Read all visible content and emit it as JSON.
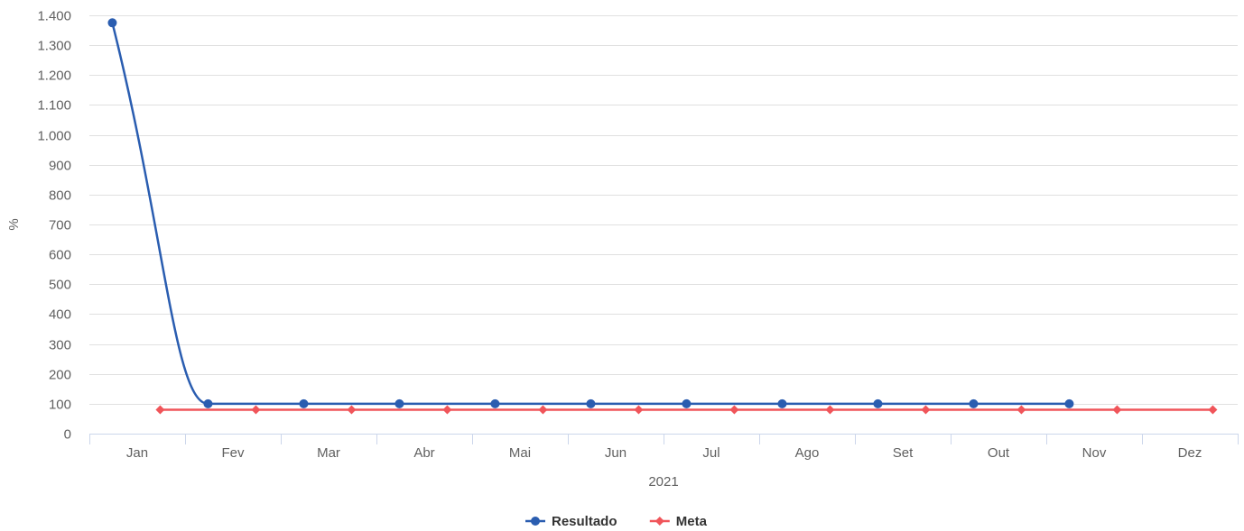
{
  "chart_data": {
    "type": "line",
    "title": "",
    "xlabel": "2021",
    "ylabel": "%",
    "categories": [
      "Jan",
      "Fev",
      "Mar",
      "Abr",
      "Mai",
      "Jun",
      "Jul",
      "Ago",
      "Set",
      "Out",
      "Nov",
      "Dez"
    ],
    "ylim": [
      0,
      1400
    ],
    "ytick_values": [
      0,
      100,
      200,
      300,
      400,
      500,
      600,
      700,
      800,
      900,
      1000,
      1100,
      1200,
      1300,
      1400
    ],
    "ytick_labels": [
      "0",
      "100",
      "200",
      "300",
      "400",
      "500",
      "600",
      "700",
      "800",
      "900",
      "1.000",
      "1.100",
      "1.200",
      "1.300",
      "1.400"
    ],
    "grid": true,
    "legend_position": "bottom-center",
    "series": [
      {
        "name": "Resultado",
        "color": "#2a5db0",
        "marker": "circle",
        "smooth": true,
        "values": [
          1375,
          100,
          100,
          100,
          100,
          100,
          100,
          100,
          100,
          100,
          100,
          null
        ]
      },
      {
        "name": "Meta",
        "color": "#f0555a",
        "marker": "diamond",
        "smooth": false,
        "values": [
          80,
          80,
          80,
          80,
          80,
          80,
          80,
          80,
          80,
          80,
          80,
          80
        ]
      }
    ]
  }
}
